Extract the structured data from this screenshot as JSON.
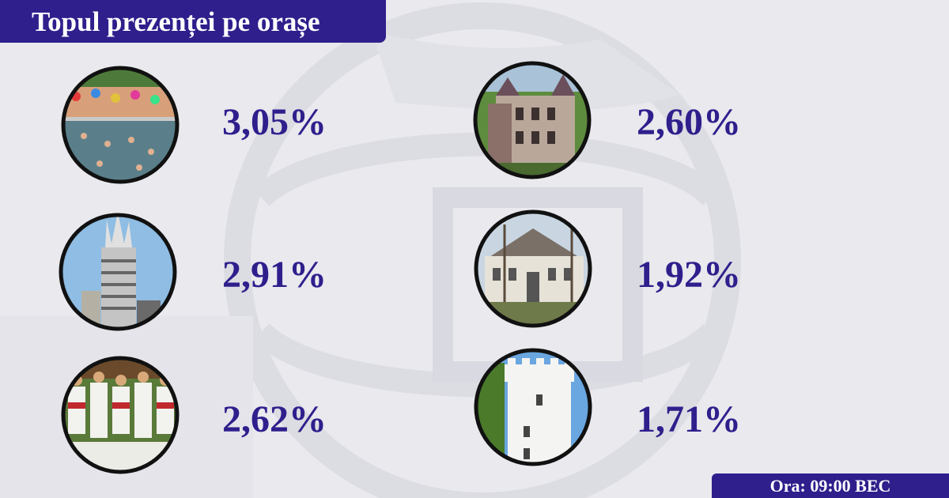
{
  "header": {
    "title": "Topul prezenței pe orașe"
  },
  "cities": [
    {
      "photo_icon": "thermal-pool-photo-icon",
      "percent": "3,05%"
    },
    {
      "photo_icon": "castle-photo-icon",
      "percent": "2,60%"
    },
    {
      "photo_icon": "tower-block-photo-icon",
      "percent": "2,91%"
    },
    {
      "photo_icon": "manor-house-photo-icon",
      "percent": "1,92%"
    },
    {
      "photo_icon": "folk-ensemble-photo-icon",
      "percent": "2,62%"
    },
    {
      "photo_icon": "white-tower-photo-icon",
      "percent": "1,71%"
    }
  ],
  "footer": {
    "time_label": "Ora: 09:00 BEC"
  },
  "colors": {
    "accent": "#2e1f8c",
    "background": "#e9e9ee",
    "text_on_accent": "#ffffff"
  }
}
